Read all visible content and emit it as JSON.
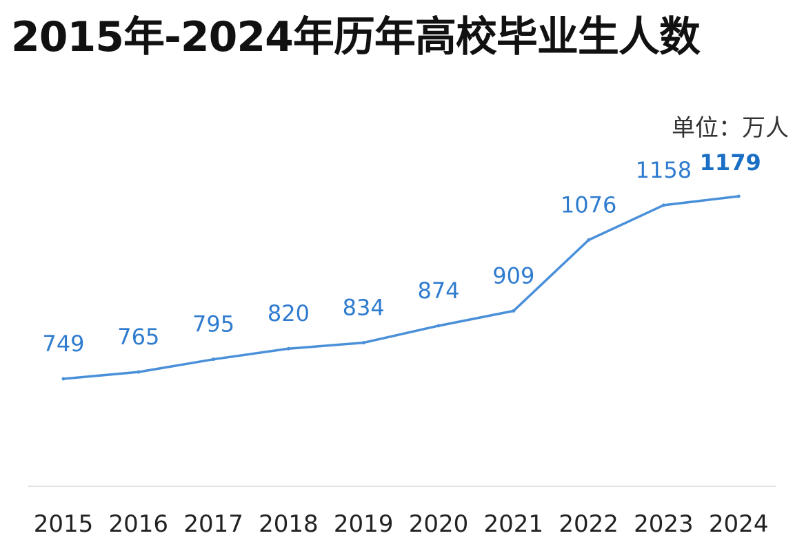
{
  "chart_data": {
    "type": "line",
    "title": "2015年-2024年历年高校毕业生人数",
    "unit_label": "单位：万人",
    "xlabel": "",
    "ylabel": "",
    "categories": [
      "2015",
      "2016",
      "2017",
      "2018",
      "2019",
      "2020",
      "2021",
      "2022",
      "2023",
      "2024"
    ],
    "values": [
      749,
      765,
      795,
      820,
      834,
      874,
      909,
      1076,
      1158,
      1179
    ],
    "value_labels": [
      "749",
      "765",
      "795",
      "820",
      "834",
      "874",
      "909",
      "1076",
      "1158",
      "1179"
    ],
    "highlight_index": 9,
    "grid": false,
    "legend": "none",
    "colors": {
      "line": "#4a90d9",
      "label": "#2f7ccf",
      "highlight_label": "#1a6fc4",
      "drop_line": "#cfe0f5",
      "baseline": "#dcdcdc"
    }
  }
}
